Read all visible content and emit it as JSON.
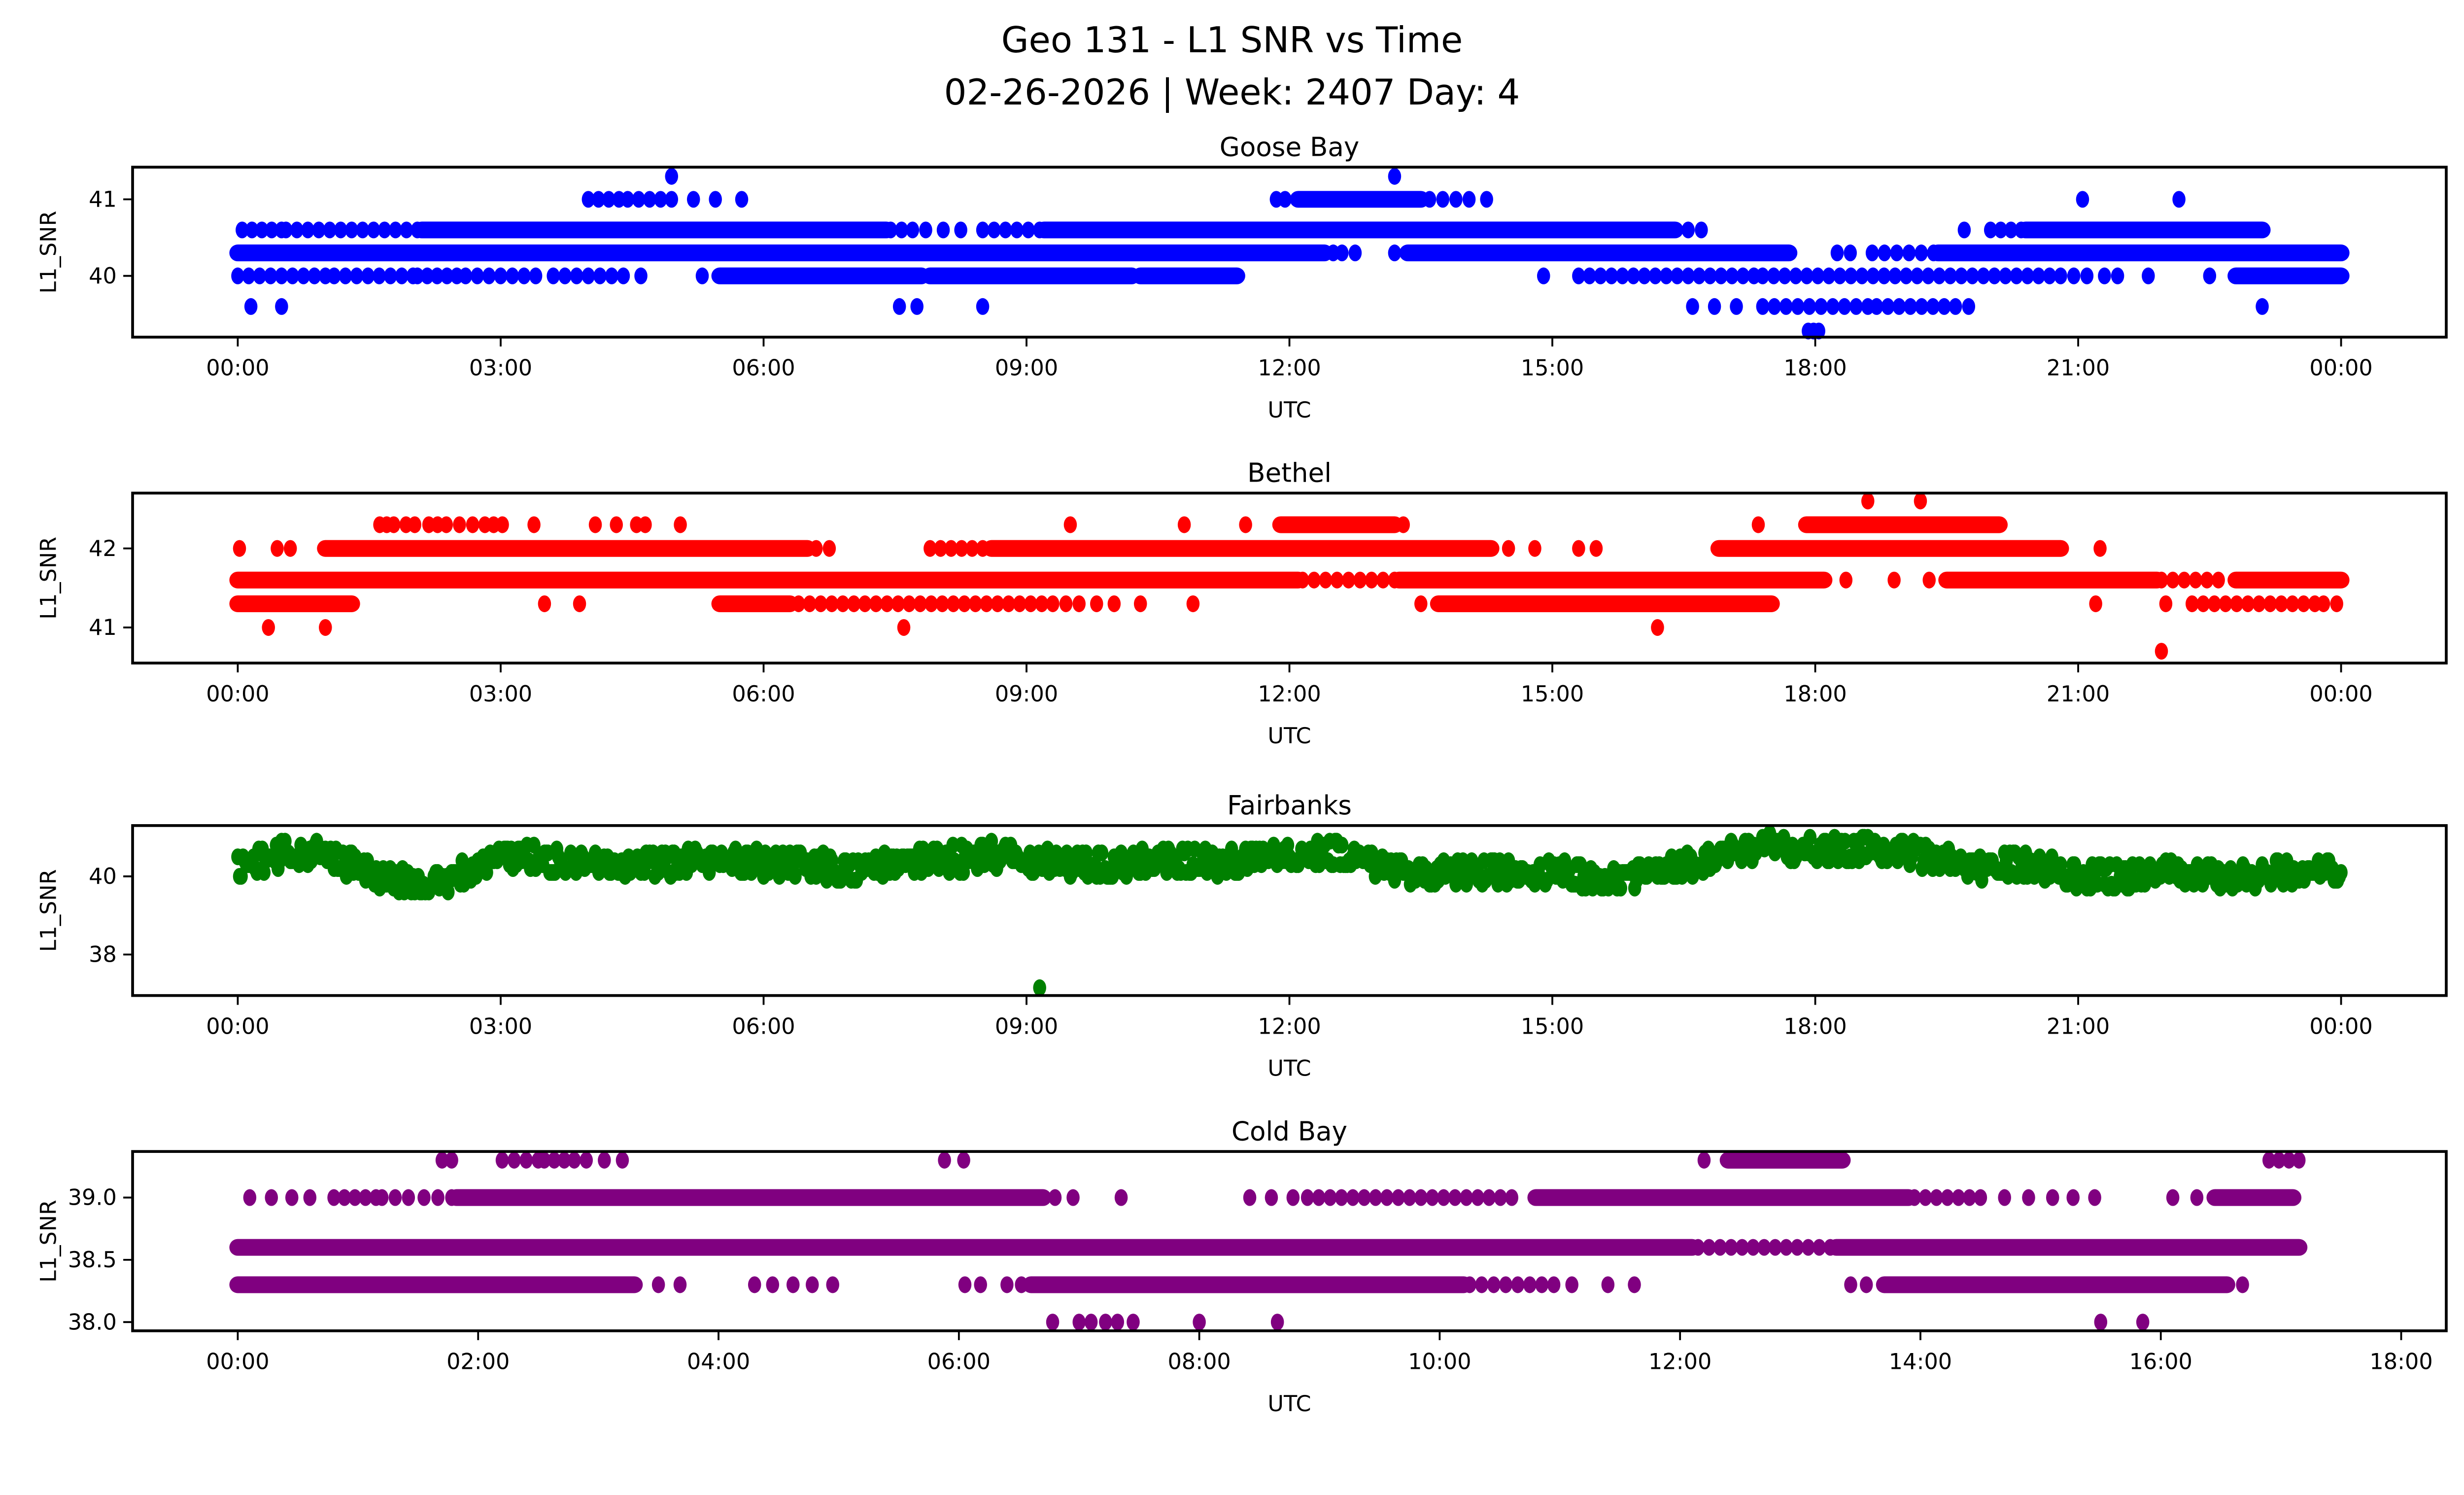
{
  "figure": {
    "suptitle_line1": "Geo 131 - L1 SNR vs Time",
    "suptitle_line2": "02-26-2026 | Week: 2407 Day: 4",
    "background_color": "#ffffff",
    "text_color": "#000000"
  },
  "chart_data": [
    {
      "type": "scatter",
      "title": "Goose Bay",
      "color": "#0000ff",
      "xlabel": "UTC",
      "ylabel": "L1_SNR",
      "xlim_hours": [
        -1.2,
        25.2
      ],
      "ylim": [
        39.2,
        41.42
      ],
      "xticks": {
        "hours": [
          0,
          3,
          6,
          9,
          12,
          15,
          18,
          21,
          24
        ],
        "labels": [
          "00:00",
          "03:00",
          "06:00",
          "09:00",
          "12:00",
          "15:00",
          "18:00",
          "21:00",
          "00:00"
        ]
      },
      "yticks": {
        "values": [
          41,
          40
        ],
        "labels": [
          "41",
          "40"
        ]
      },
      "rows": [
        {
          "snr": 41.3,
          "runs": [],
          "dots": [
            4.95,
            13.2
          ]
        },
        {
          "snr": 41.0,
          "runs": [
            [
              4.0,
              4.35,
              1
            ],
            [
              4.45,
              4.95,
              1
            ],
            [
              12.1,
              13.5,
              0
            ]
          ],
          "dots": [
            5.2,
            5.45,
            5.75,
            11.85,
            11.95,
            13.6,
            13.75,
            13.9,
            14.05,
            14.25,
            21.05,
            22.15
          ]
        },
        {
          "snr": 40.6,
          "runs": [
            [
              0.05,
              0.5,
              1
            ],
            [
              0.55,
              2.05,
              1
            ],
            [
              2.1,
              7.4,
              0
            ],
            [
              7.45,
              7.7,
              1
            ],
            [
              8.5,
              9.15,
              1
            ],
            [
              9.2,
              16.4,
              0
            ],
            [
              20.0,
              20.35,
              1
            ],
            [
              20.4,
              23.1,
              0
            ]
          ],
          "dots": [
            7.85,
            8.05,
            8.25,
            16.55,
            16.7,
            19.7
          ]
        },
        {
          "snr": 40.3,
          "runs": [
            [
              0.0,
              12.4,
              0
            ],
            [
              13.35,
              17.7,
              0
            ],
            [
              18.65,
              19.35,
              1
            ],
            [
              19.4,
              24.0,
              0
            ]
          ],
          "dots": [
            12.5,
            12.6,
            12.75,
            13.2,
            18.25,
            18.4
          ]
        },
        {
          "snr": 40.0,
          "runs": [
            [
              0.0,
              1.0,
              1
            ],
            [
              1.1,
              2.0,
              1
            ],
            [
              2.05,
              2.5,
              1
            ],
            [
              2.6,
              3.4,
              1
            ],
            [
              3.6,
              4.4,
              1
            ],
            [
              5.5,
              7.8,
              0
            ],
            [
              7.9,
              10.2,
              0
            ],
            [
              10.3,
              11.4,
              0
            ],
            [
              15.3,
              17.3,
              1
            ],
            [
              17.4,
              20.8,
              1
            ],
            [
              22.8,
              24.0,
              0
            ]
          ],
          "dots": [
            4.6,
            5.3,
            14.9,
            20.95,
            21.1,
            21.3,
            21.45,
            21.8,
            22.5
          ]
        },
        {
          "snr": 39.6,
          "runs": [
            [
              17.4,
              18.6,
              1
            ],
            [
              18.7,
              19.6,
              1
            ]
          ],
          "dots": [
            0.15,
            0.5,
            7.55,
            7.75,
            8.5,
            16.6,
            16.85,
            17.1,
            19.75,
            23.1
          ]
        },
        {
          "snr": 39.28,
          "runs": [],
          "dots": [
            17.92,
            17.98,
            18.04
          ]
        }
      ]
    },
    {
      "type": "scatter",
      "title": "Bethel",
      "color": "#ff0000",
      "xlabel": "UTC",
      "ylabel": "L1_SNR",
      "xlim_hours": [
        -1.2,
        25.2
      ],
      "ylim": [
        40.55,
        42.7
      ],
      "xticks": {
        "hours": [
          0,
          3,
          6,
          9,
          12,
          15,
          18,
          21,
          24
        ],
        "labels": [
          "00:00",
          "03:00",
          "06:00",
          "09:00",
          "12:00",
          "15:00",
          "18:00",
          "21:00",
          "00:00"
        ]
      },
      "yticks": {
        "values": [
          42,
          41
        ],
        "labels": [
          "42",
          "41"
        ]
      },
      "rows": [
        {
          "snr": 42.6,
          "runs": [],
          "dots": [
            18.6,
            19.2
          ]
        },
        {
          "snr": 42.3,
          "runs": [
            [
              2.38,
              2.68,
              1
            ],
            [
              11.9,
              13.2,
              0
            ],
            [
              17.9,
              20.1,
              0
            ]
          ],
          "dots": [
            1.62,
            1.7,
            1.78,
            1.92,
            2.02,
            2.18,
            2.28,
            2.82,
            2.92,
            3.02,
            3.38,
            4.08,
            4.32,
            4.55,
            4.65,
            5.05,
            9.5,
            10.8,
            11.5,
            13.3,
            17.35
          ]
        },
        {
          "snr": 42.0,
          "runs": [
            [
              1.0,
              6.5,
              0
            ],
            [
              7.9,
              8.5,
              1
            ],
            [
              8.6,
              14.3,
              0
            ],
            [
              16.9,
              20.8,
              0
            ]
          ],
          "dots": [
            0.02,
            0.45,
            0.6,
            6.6,
            6.75,
            14.5,
            14.8,
            15.3,
            15.5,
            21.25
          ]
        },
        {
          "snr": 41.6,
          "runs": [
            [
              0.0,
              12.1,
              0
            ],
            [
              12.15,
              13.2,
              1
            ],
            [
              13.25,
              18.1,
              0
            ],
            [
              19.5,
              21.9,
              0
            ],
            [
              21.95,
              22.6,
              1
            ],
            [
              22.8,
              24.0,
              0
            ]
          ],
          "dots": [
            18.35,
            18.9,
            19.3
          ]
        },
        {
          "snr": 41.3,
          "runs": [
            [
              0.0,
              1.3,
              0
            ],
            [
              5.5,
              6.3,
              0
            ],
            [
              6.4,
              9.3,
              1
            ],
            [
              13.7,
              17.5,
              0
            ],
            [
              22.3,
              23.7,
              1
            ]
          ],
          "dots": [
            3.5,
            3.9,
            9.45,
            9.6,
            9.8,
            10.0,
            10.3,
            10.9,
            13.5,
            21.2,
            22.0,
            23.8,
            23.95
          ]
        },
        {
          "snr": 41.0,
          "runs": [],
          "dots": [
            0.35,
            1.0,
            7.6,
            16.2
          ]
        },
        {
          "snr": 40.7,
          "runs": [],
          "dots": [
            21.95
          ]
        }
      ]
    },
    {
      "type": "scatter",
      "title": "Fairbanks",
      "color": "#008000",
      "xlabel": "UTC",
      "ylabel": "L1_SNR",
      "xlim_hours": [
        -1.2,
        25.2
      ],
      "ylim": [
        36.95,
        41.3
      ],
      "xticks": {
        "hours": [
          0,
          3,
          6,
          9,
          12,
          15,
          18,
          21,
          24
        ],
        "labels": [
          "00:00",
          "03:00",
          "06:00",
          "09:00",
          "12:00",
          "15:00",
          "18:00",
          "21:00",
          "00:00"
        ]
      },
      "yticks": {
        "values": [
          40,
          38
        ],
        "labels": [
          "40",
          "38"
        ]
      },
      "rows": [],
      "band": {
        "step_hours": 0.02,
        "jitter": 0.33,
        "quantize": 0.1,
        "keypoints": [
          [
            0,
            40.25
          ],
          [
            0.3,
            40.45
          ],
          [
            0.7,
            40.6
          ],
          [
            1.0,
            40.55
          ],
          [
            1.3,
            40.3
          ],
          [
            1.7,
            39.95
          ],
          [
            2.1,
            39.8
          ],
          [
            2.4,
            39.85
          ],
          [
            2.7,
            40.2
          ],
          [
            3.0,
            40.5
          ],
          [
            3.3,
            40.55
          ],
          [
            3.6,
            40.35
          ],
          [
            4.0,
            40.3
          ],
          [
            4.5,
            40.35
          ],
          [
            5.0,
            40.3
          ],
          [
            5.5,
            40.4
          ],
          [
            6.0,
            40.35
          ],
          [
            6.5,
            40.3
          ],
          [
            7.0,
            40.15
          ],
          [
            7.4,
            40.3
          ],
          [
            7.8,
            40.4
          ],
          [
            8.2,
            40.45
          ],
          [
            8.6,
            40.55
          ],
          [
            9.0,
            40.45
          ],
          [
            9.4,
            40.4
          ],
          [
            9.8,
            40.25
          ],
          [
            10.2,
            40.3
          ],
          [
            10.6,
            40.4
          ],
          [
            11.0,
            40.35
          ],
          [
            11.4,
            40.4
          ],
          [
            11.8,
            40.5
          ],
          [
            12.2,
            40.65
          ],
          [
            12.5,
            40.6
          ],
          [
            12.9,
            40.35
          ],
          [
            13.3,
            40.15
          ],
          [
            13.7,
            40.05
          ],
          [
            14.1,
            40.1
          ],
          [
            14.5,
            40.15
          ],
          [
            15.0,
            40.1
          ],
          [
            15.4,
            40.0
          ],
          [
            15.8,
            39.95
          ],
          [
            16.2,
            40.1
          ],
          [
            16.6,
            40.3
          ],
          [
            17.0,
            40.55
          ],
          [
            17.4,
            40.75
          ],
          [
            17.8,
            40.7
          ],
          [
            18.2,
            40.65
          ],
          [
            18.6,
            40.7
          ],
          [
            19.0,
            40.65
          ],
          [
            19.3,
            40.5
          ],
          [
            19.6,
            40.35
          ],
          [
            20.0,
            40.2
          ],
          [
            20.3,
            40.3
          ],
          [
            20.7,
            40.2
          ],
          [
            21.0,
            40.0
          ],
          [
            21.4,
            39.95
          ],
          [
            21.8,
            40.05
          ],
          [
            22.2,
            40.1
          ],
          [
            22.6,
            39.95
          ],
          [
            23.0,
            40.0
          ],
          [
            23.4,
            40.1
          ],
          [
            23.7,
            40.15
          ],
          [
            24.0,
            40.2
          ]
        ],
        "outliers": [
          [
            9.15,
            37.15
          ]
        ]
      }
    },
    {
      "type": "scatter",
      "title": "Cold Bay",
      "color": "#800080",
      "xlabel": "UTC",
      "ylabel": "L1_SNR",
      "xlim_hours": [
        -0.875,
        18.375
      ],
      "ylim": [
        37.93,
        39.37
      ],
      "xticks": {
        "hours": [
          0,
          2,
          4,
          6,
          8,
          10,
          12,
          14,
          16,
          18
        ],
        "labels": [
          "00:00",
          "02:00",
          "04:00",
          "06:00",
          "08:00",
          "10:00",
          "12:00",
          "14:00",
          "16:00",
          "18:00"
        ]
      },
      "yticks": {
        "values": [
          39.0,
          38.5,
          38.0
        ],
        "labels": [
          "39.0",
          "38.5",
          "38.0"
        ]
      },
      "rows": [
        {
          "snr": 39.3,
          "runs": [
            [
              2.2,
              2.5,
              1
            ],
            [
              2.55,
              2.8,
              1
            ],
            [
              12.4,
              13.35,
              0
            ],
            [
              16.9,
              17.15,
              1
            ]
          ],
          "dots": [
            1.7,
            1.78,
            2.9,
            3.05,
            3.2,
            5.88,
            6.04,
            12.2
          ]
        },
        {
          "snr": 39.0,
          "runs": [
            [
              0.8,
              1.15,
              1
            ],
            [
              1.2,
              1.42,
              1
            ],
            [
              1.55,
              1.78,
              1
            ],
            [
              1.82,
              6.7,
              0
            ],
            [
              8.9,
              10.6,
              1
            ],
            [
              10.8,
              13.9,
              0
            ],
            [
              13.95,
              14.5,
              1
            ],
            [
              16.45,
              17.1,
              0
            ]
          ],
          "dots": [
            0.1,
            0.28,
            0.45,
            0.6,
            6.8,
            6.95,
            7.35,
            8.42,
            8.6,
            8.78,
            14.7,
            14.9,
            15.1,
            15.27,
            15.45,
            16.1,
            16.3
          ]
        },
        {
          "snr": 38.6,
          "runs": [
            [
              0.0,
              12.1,
              0
            ],
            [
              12.15,
              13.25,
              1
            ],
            [
              13.3,
              17.15,
              0
            ]
          ],
          "dots": []
        },
        {
          "snr": 38.3,
          "runs": [
            [
              0.0,
              3.3,
              0
            ],
            [
              6.6,
              10.2,
              0
            ],
            [
              10.25,
              10.85,
              1
            ],
            [
              13.7,
              16.55,
              0
            ]
          ],
          "dots": [
            3.5,
            3.68,
            4.3,
            4.45,
            4.62,
            4.78,
            4.95,
            6.05,
            6.18,
            6.4,
            6.52,
            10.95,
            11.1,
            11.4,
            11.62,
            13.42,
            13.55,
            16.68
          ]
        },
        {
          "snr": 38.0,
          "runs": [],
          "dots": [
            6.78,
            7.0,
            7.1,
            7.22,
            7.32,
            7.45,
            8.0,
            8.65,
            15.5,
            15.85
          ]
        }
      ]
    }
  ]
}
